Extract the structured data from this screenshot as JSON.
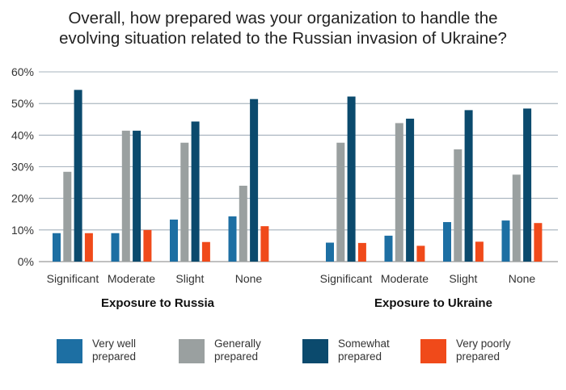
{
  "chart_data": {
    "type": "bar",
    "title_lines": [
      "Overall, how prepared was your organization to handle the",
      "evolving situation related to the Russian invasion of Ukraine?"
    ],
    "y_ticks": [
      "0%",
      "10%",
      "20%",
      "30%",
      "40%",
      "50%",
      "60%"
    ],
    "ylim": [
      0,
      60
    ],
    "grid": true,
    "legend_position": "bottom",
    "groups": [
      {
        "label": "Exposure to Russia",
        "categories": [
          "Significant",
          "Moderate",
          "Slight",
          "None"
        ],
        "series": [
          {
            "name": "Very well prepared",
            "values": [
              9,
              9,
              13.3,
              14.3
            ]
          },
          {
            "name": "Generally prepared",
            "values": [
              28.4,
              41.4,
              37.6,
              24
            ]
          },
          {
            "name": "Somewhat prepared",
            "values": [
              54.3,
              41.4,
              44.3,
              51.4
            ]
          },
          {
            "name": "Very poorly prepared",
            "values": [
              9,
              10,
              6.2,
              11.2
            ]
          }
        ]
      },
      {
        "label": "Exposure to Ukraine",
        "categories": [
          "Significant",
          "Moderate",
          "Slight",
          "None"
        ],
        "series": [
          {
            "name": "Very well prepared",
            "values": [
              6,
              8.2,
              12.5,
              13
            ]
          },
          {
            "name": "Generally prepared",
            "values": [
              37.6,
              43.8,
              35.5,
              27.5
            ]
          },
          {
            "name": "Somewhat prepared",
            "values": [
              52.2,
              45.2,
              47.9,
              48.4
            ]
          },
          {
            "name": "Very poorly prepared",
            "values": [
              5.9,
              5,
              6.3,
              12.2
            ]
          }
        ]
      }
    ]
  },
  "legend": [
    {
      "line1": "Very well",
      "line2": "prepared",
      "color": "#1d6fa3"
    },
    {
      "line1": "Generally",
      "line2": "prepared",
      "color": "#9aa0a0"
    },
    {
      "line1": "Somewhat",
      "line2": "prepared",
      "color": "#0b4a6d"
    },
    {
      "line1": "Very poorly",
      "line2": "prepared",
      "color": "#f04a1a"
    }
  ]
}
